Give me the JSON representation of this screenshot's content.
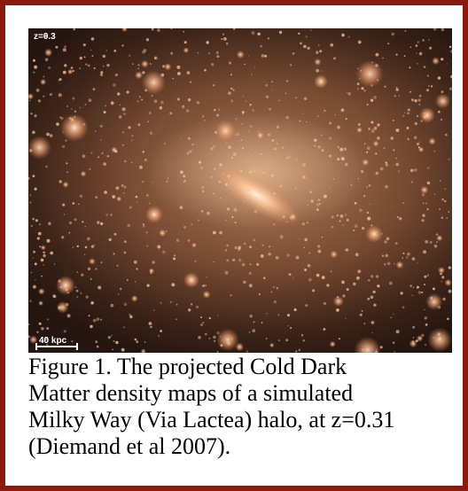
{
  "image": {
    "redshift_label": "z=0.3",
    "scale_label": "40 kpc"
  },
  "caption": {
    "lines": [
      "Figure 1. The projected Cold Dark",
      "Matter density maps of a simulated",
      "Milky Way (Via Lactea) halo, at z=0.31",
      "(Diemand et al 2007)."
    ]
  },
  "colors": {
    "frame": "#8b1a10",
    "halo_core": "#ffd6af",
    "background_dark": "#241510"
  }
}
